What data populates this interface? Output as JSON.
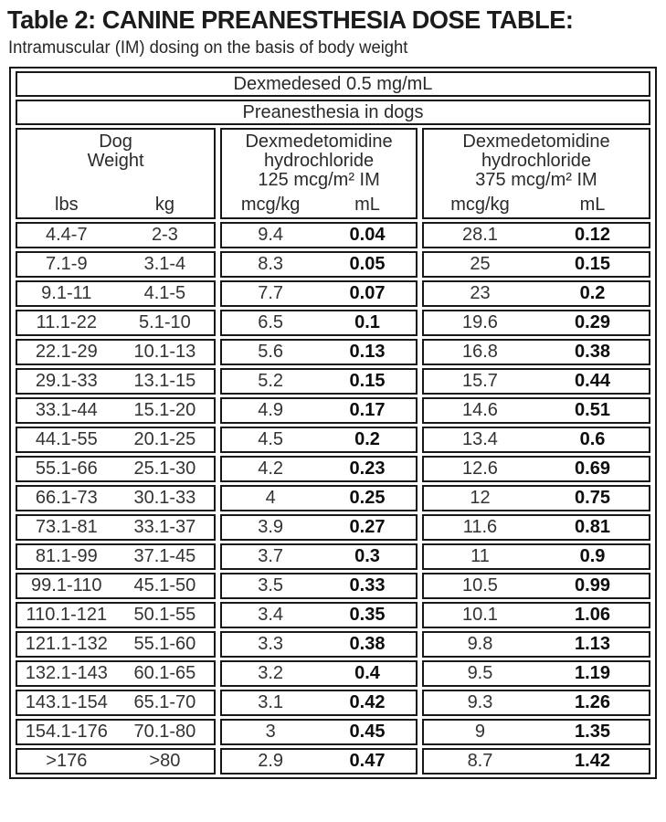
{
  "page": {
    "title": "Table 2: CANINE PREANESTHESIA DOSE TABLE:",
    "subtitle": "Intramuscular (IM) dosing on the basis of body weight"
  },
  "table": {
    "banner_drug": "Dexmedesed 0.5 mg/mL",
    "banner_use": "Preanesthesia in dogs",
    "groups": [
      {
        "title": "Dog\nWeight",
        "sub": [
          "lbs",
          "kg"
        ]
      },
      {
        "title": "Dexmedetomidine\nhydrochloride\n125 mcg/m² IM",
        "sub": [
          "mcg/kg",
          "mL"
        ]
      },
      {
        "title": "Dexmedetomidine\nhydrochloride\n375 mcg/m² IM",
        "sub": [
          "mcg/kg",
          "mL"
        ]
      }
    ],
    "column_keys": [
      "lbs",
      "kg",
      "mcg-kg-125",
      "ml-125",
      "mcg-kg-375",
      "ml-375"
    ],
    "rows": [
      [
        "4.4-7",
        "2-3",
        "9.4",
        "0.04",
        "28.1",
        "0.12"
      ],
      [
        "7.1-9",
        "3.1-4",
        "8.3",
        "0.05",
        "25",
        "0.15"
      ],
      [
        "9.1-11",
        "4.1-5",
        "7.7",
        "0.07",
        "23",
        "0.2"
      ],
      [
        "11.1-22",
        "5.1-10",
        "6.5",
        "0.1",
        "19.6",
        "0.29"
      ],
      [
        "22.1-29",
        "10.1-13",
        "5.6",
        "0.13",
        "16.8",
        "0.38"
      ],
      [
        "29.1-33",
        "13.1-15",
        "5.2",
        "0.15",
        "15.7",
        "0.44"
      ],
      [
        "33.1-44",
        "15.1-20",
        "4.9",
        "0.17",
        "14.6",
        "0.51"
      ],
      [
        "44.1-55",
        "20.1-25",
        "4.5",
        "0.2",
        "13.4",
        "0.6"
      ],
      [
        "55.1-66",
        "25.1-30",
        "4.2",
        "0.23",
        "12.6",
        "0.69"
      ],
      [
        "66.1-73",
        "30.1-33",
        "4",
        "0.25",
        "12",
        "0.75"
      ],
      [
        "73.1-81",
        "33.1-37",
        "3.9",
        "0.27",
        "11.6",
        "0.81"
      ],
      [
        "81.1-99",
        "37.1-45",
        "3.7",
        "0.3",
        "11",
        "0.9"
      ],
      [
        "99.1-110",
        "45.1-50",
        "3.5",
        "0.33",
        "10.5",
        "0.99"
      ],
      [
        "110.1-121",
        "50.1-55",
        "3.4",
        "0.35",
        "10.1",
        "1.06"
      ],
      [
        "121.1-132",
        "55.1-60",
        "3.3",
        "0.38",
        "9.8",
        "1.13"
      ],
      [
        "132.1-143",
        "60.1-65",
        "3.2",
        "0.4",
        "9.5",
        "1.19"
      ],
      [
        "143.1-154",
        "65.1-70",
        "3.1",
        "0.42",
        "9.3",
        "1.26"
      ],
      [
        "154.1-176",
        "70.1-80",
        "3",
        "0.45",
        "9",
        "1.35"
      ],
      [
        ">176",
        ">80",
        "2.9",
        "0.47",
        "8.7",
        "1.42"
      ]
    ]
  }
}
